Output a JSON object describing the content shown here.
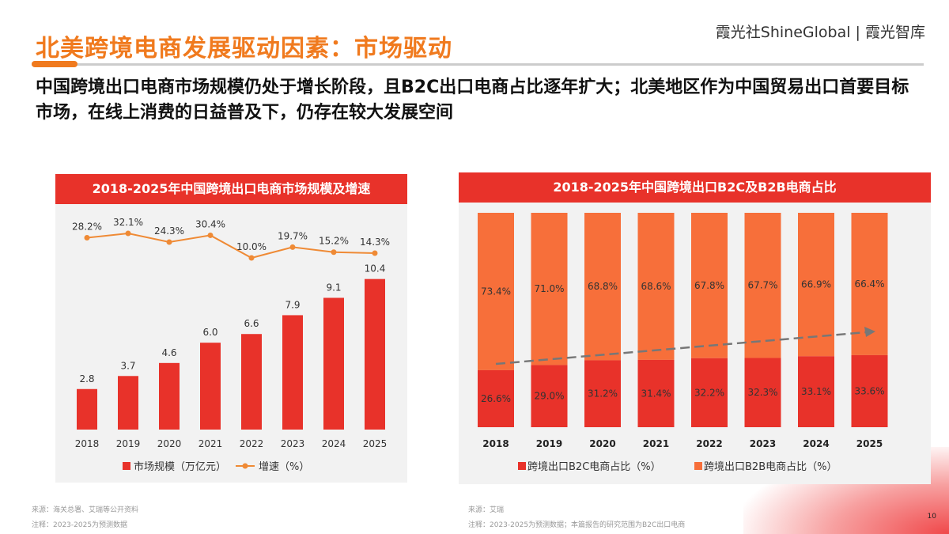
{
  "header": {
    "title": "北美跨境电商发展驱动因素：市场驱动",
    "brand": "霞光社ShineGlobal | 霞光智库",
    "subtitle": "中国跨境出口电商市场规模仍处于增长阶段，且B2C出口电商占比逐年扩大；北美地区作为中国贸易出口首要目标市场，在线上消费的日益普及下，仍存在较大发展空间"
  },
  "colors": {
    "accent": "#f07a1e",
    "red": "#e8322a",
    "orange": "#f76f3a",
    "line": "#ef8a35"
  },
  "chart_data": [
    {
      "type": "bar+line",
      "title": "2018-2025年中国跨境出口电商市场规模及增速",
      "categories": [
        "2018",
        "2019",
        "2020",
        "2021",
        "2022",
        "2023",
        "2024",
        "2025"
      ],
      "series": [
        {
          "name": "市场规模（万亿元）",
          "type": "bar",
          "values": [
            2.8,
            3.7,
            4.6,
            6.0,
            6.6,
            7.9,
            9.1,
            10.4
          ],
          "labels": [
            "2.8",
            "3.7",
            "4.6",
            "6.0",
            "6.6",
            "7.9",
            "9.1",
            "10.4"
          ]
        },
        {
          "name": "增速（%）",
          "type": "line",
          "values": [
            28.2,
            32.1,
            24.3,
            30.4,
            10.0,
            19.7,
            15.2,
            14.3
          ],
          "labels": [
            "28.2%",
            "32.1%",
            "24.3%",
            "30.4%",
            "10.0%",
            "19.7%",
            "15.2%",
            "14.3%"
          ]
        }
      ],
      "legend": "bottom"
    },
    {
      "type": "stacked-bar",
      "title": "2018-2025年中国跨境出口B2C及B2B电商占比",
      "categories": [
        "2018",
        "2019",
        "2020",
        "2021",
        "2022",
        "2023",
        "2024",
        "2025"
      ],
      "series": [
        {
          "name": "跨境出口B2C电商占比（%）",
          "values": [
            26.6,
            29.0,
            31.2,
            31.4,
            32.2,
            32.3,
            33.1,
            33.6
          ],
          "labels": [
            "26.6%",
            "29.0%",
            "31.2%",
            "31.4%",
            "32.2%",
            "32.3%",
            "33.1%",
            "33.6%"
          ]
        },
        {
          "name": "跨境出口B2B电商占比（%）",
          "values": [
            73.4,
            71.0,
            68.8,
            68.6,
            67.8,
            67.7,
            66.9,
            66.4
          ],
          "labels": [
            "73.4%",
            "71.0%",
            "68.8%",
            "68.6%",
            "67.8%",
            "67.7%",
            "66.9%",
            "66.4%"
          ]
        }
      ],
      "annotation": "dashed trend arrow (rising B2C share)",
      "legend": "bottom",
      "ylim": [
        0,
        100
      ]
    }
  ],
  "notes": {
    "left_source": "来源：海关总署、艾瑞等公开资料",
    "left_note": "注释：2023-2025为预测数据",
    "right_source": "来源：艾瑞",
    "right_note": "注释：2023-2025为预测数据；本篇报告的研究范围为B2C出口电商"
  },
  "page_number": "10"
}
